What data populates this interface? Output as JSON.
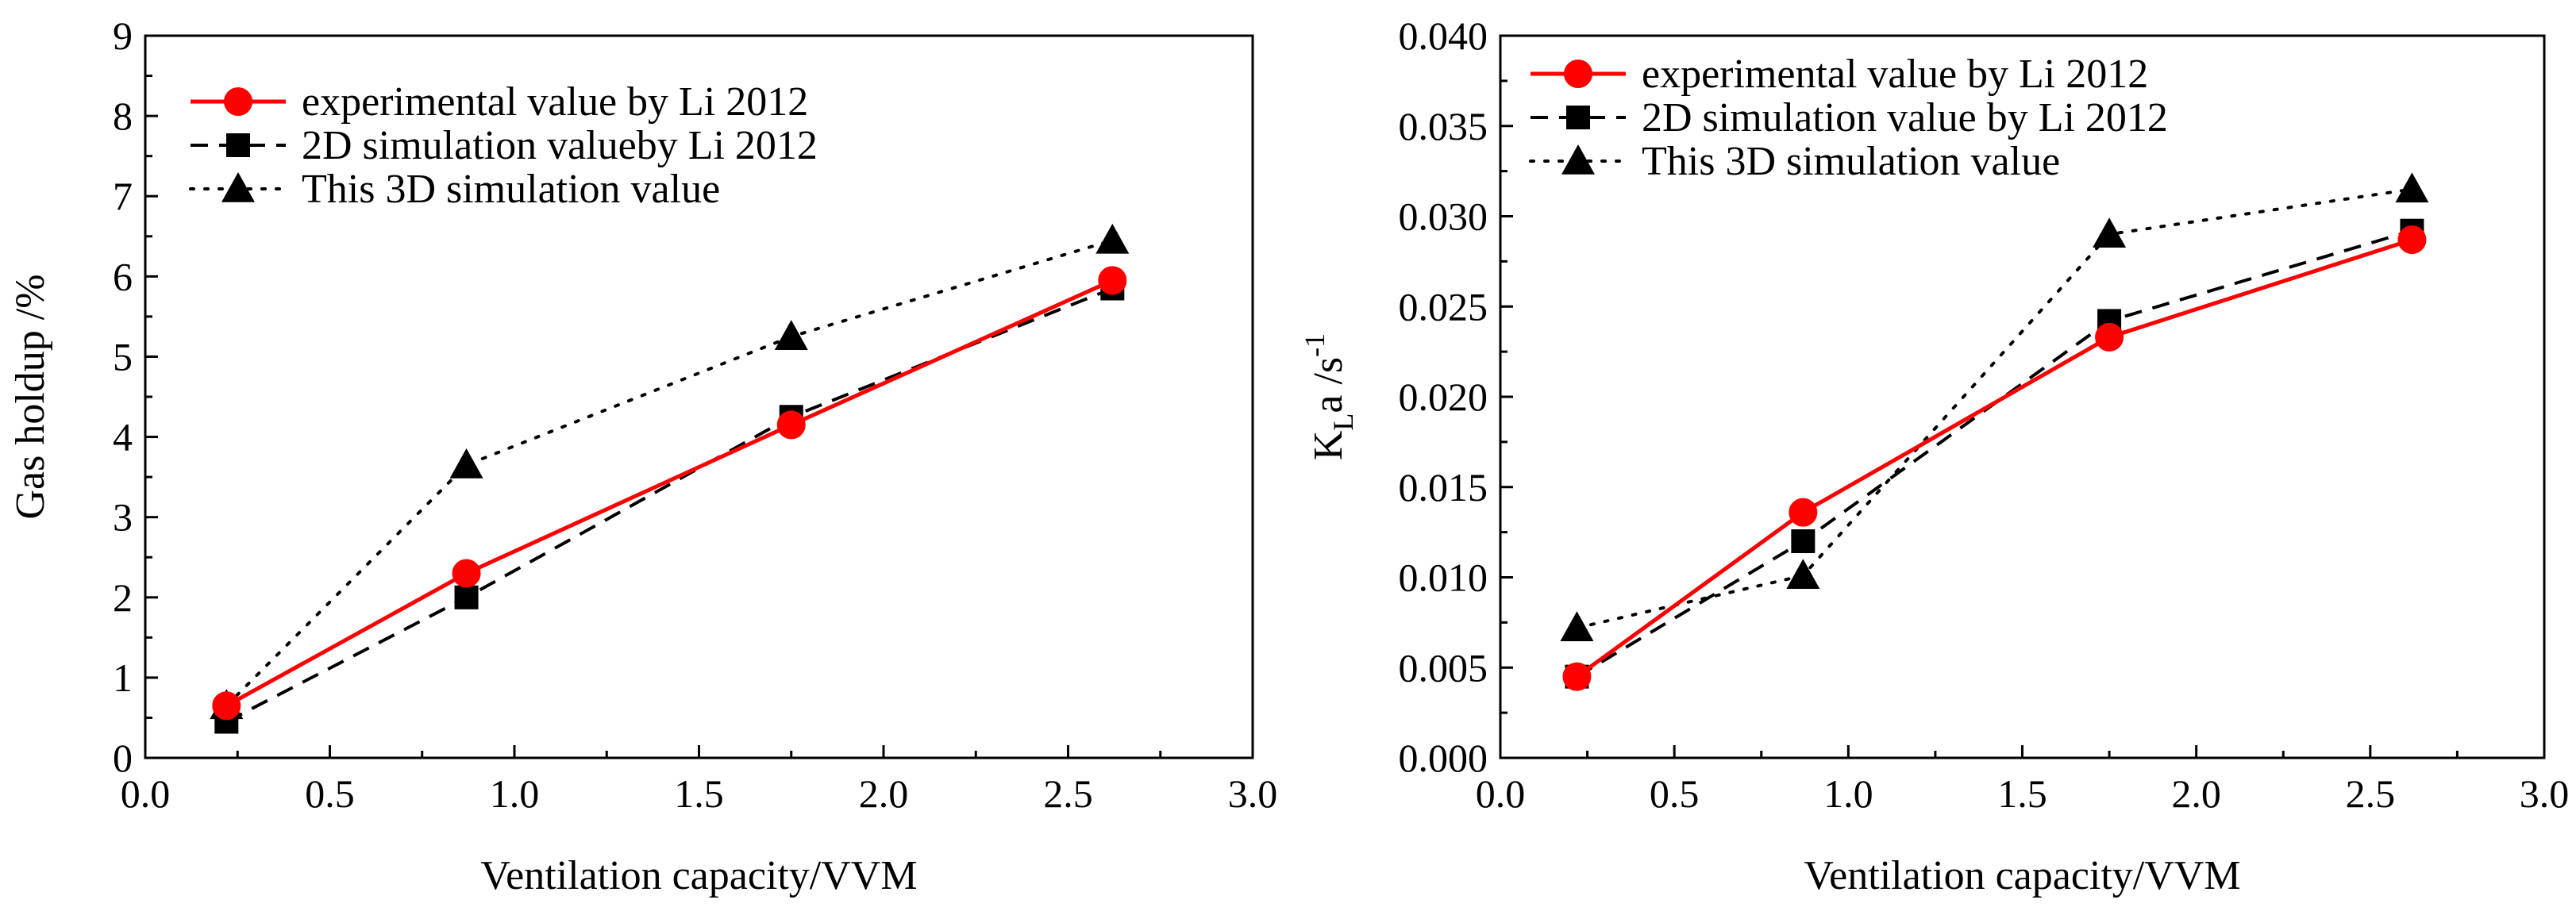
{
  "chart_data": [
    {
      "type": "line",
      "xlabel": "Ventilation capacity/VVM",
      "ylabel": "Gas holdup /%",
      "xlim": [
        0.0,
        3.0
      ],
      "ylim": [
        0,
        9
      ],
      "xticks": [
        "0.0",
        "0.5",
        "1.0",
        "1.5",
        "2.0",
        "2.5",
        "3.0"
      ],
      "yticks": [
        "0",
        "1",
        "2",
        "3",
        "4",
        "5",
        "6",
        "7",
        "8",
        "9"
      ],
      "legend_position": "top-left",
      "grid": false,
      "x": [
        0.22,
        0.87,
        1.75,
        2.62
      ],
      "series": [
        {
          "name": "experimental value by Li 2012",
          "values": [
            0.65,
            2.3,
            4.15,
            5.95
          ],
          "color": "#ff0000",
          "marker": "circle",
          "line": "solid"
        },
        {
          "name": "2D simulation valueby Li 2012",
          "values": [
            0.45,
            2.0,
            4.25,
            5.85
          ],
          "color": "#000000",
          "marker": "square",
          "line": "dashed"
        },
        {
          "name": "This 3D simulation value",
          "values": [
            0.65,
            3.65,
            5.25,
            6.45
          ],
          "color": "#000000",
          "marker": "triangle",
          "line": "dotted"
        }
      ]
    },
    {
      "type": "line",
      "xlabel": "Ventilation capacity/VVM",
      "ylabel": "K",
      "ylabel_sub": "L",
      "ylabel_rest": "a /s",
      "ylabel_sup": "-1",
      "xlim": [
        0.0,
        3.0
      ],
      "ylim": [
        0.0,
        0.04
      ],
      "xticks": [
        "0.0",
        "0.5",
        "1.0",
        "1.5",
        "2.0",
        "2.5",
        "3.0"
      ],
      "yticks": [
        "0.000",
        "0.005",
        "0.010",
        "0.015",
        "0.020",
        "0.025",
        "0.030",
        "0.035",
        "0.040"
      ],
      "legend_position": "top-left",
      "grid": false,
      "x": [
        0.22,
        0.87,
        1.75,
        2.62
      ],
      "series": [
        {
          "name": "experimental value by Li 2012",
          "values": [
            0.0045,
            0.0136,
            0.0233,
            0.0287
          ],
          "color": "#ff0000",
          "marker": "circle",
          "line": "solid"
        },
        {
          "name": "2D simulation value by Li 2012",
          "values": [
            0.0045,
            0.012,
            0.0242,
            0.0292
          ],
          "color": "#000000",
          "marker": "square",
          "line": "dashed"
        },
        {
          "name": "This 3D simulation value",
          "values": [
            0.0072,
            0.0101,
            0.029,
            0.0315
          ],
          "color": "#000000",
          "marker": "triangle",
          "line": "dotted"
        }
      ]
    }
  ]
}
